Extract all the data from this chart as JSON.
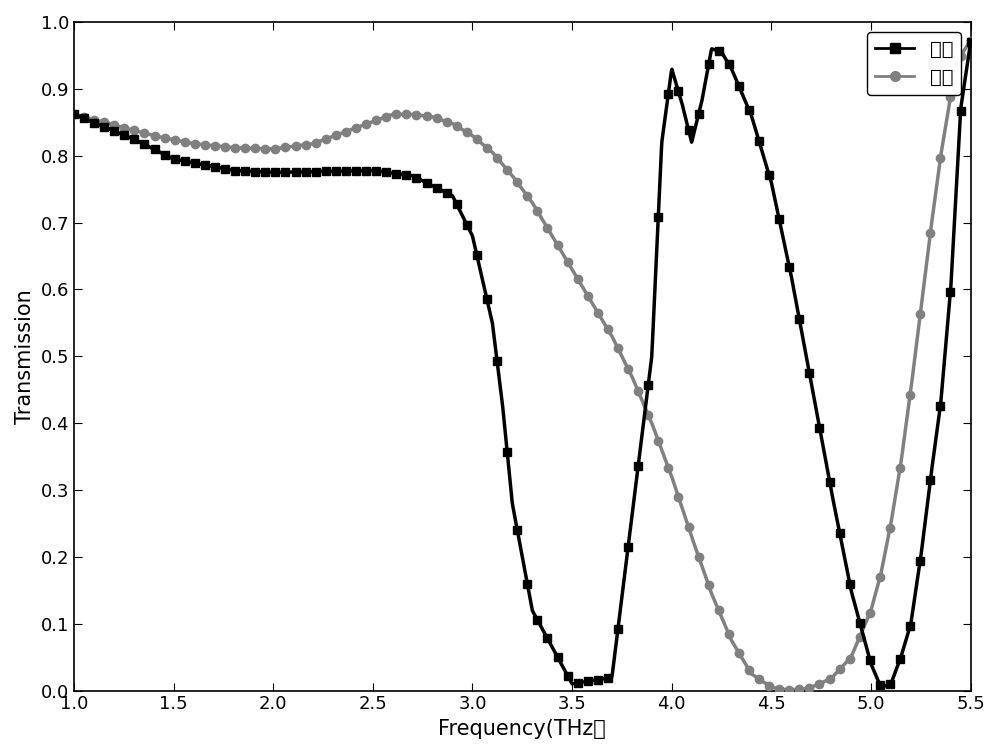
{
  "title": "",
  "xlabel": "Frequency(THz）",
  "ylabel": "Transmission",
  "xlim": [
    1.0,
    5.5
  ],
  "ylim": [
    0.0,
    1.0
  ],
  "xticks": [
    1.0,
    1.5,
    2.0,
    2.5,
    3.0,
    3.5,
    4.0,
    4.5,
    5.0,
    5.5
  ],
  "yticks": [
    0.0,
    0.1,
    0.2,
    0.3,
    0.4,
    0.5,
    0.6,
    0.7,
    0.8,
    0.9,
    1.0
  ],
  "legend_labels": [
    "常温",
    "高温"
  ],
  "black_color": "#000000",
  "gray_color": "#808080",
  "figsize": [
    10.0,
    7.54
  ],
  "dpi": 100
}
